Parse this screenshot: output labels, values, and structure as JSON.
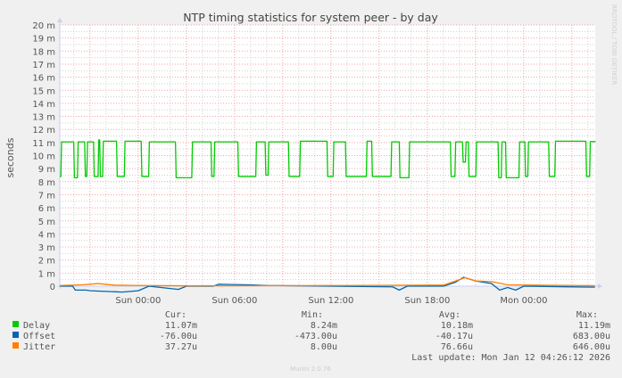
{
  "chart_data": {
    "type": "line",
    "title": "NTP timing statistics for system peer - by day",
    "ylabel": "seconds",
    "ylim": [
      0,
      20
    ],
    "yunit": "m",
    "yticks": [
      "0",
      "1 m",
      "2 m",
      "3 m",
      "4 m",
      "5 m",
      "6 m",
      "7 m",
      "8 m",
      "9 m",
      "10 m",
      "11 m",
      "12 m",
      "13 m",
      "14 m",
      "15 m",
      "16 m",
      "17 m",
      "18 m",
      "19 m",
      "20 m"
    ],
    "xlim": [
      "2026-01-10 19:07",
      "2026-01-12 04:27"
    ],
    "xticks": [
      {
        "t": "2026-01-11 00:00",
        "label": "Sun 00:00"
      },
      {
        "t": "2026-01-11 06:00",
        "label": "Sun 06:00"
      },
      {
        "t": "2026-01-11 12:00",
        "label": "Sun 12:00"
      },
      {
        "t": "2026-01-11 18:00",
        "label": "Sun 18:00"
      },
      {
        "t": "2026-01-12 00:00",
        "label": "Mon 00:00"
      }
    ],
    "grid": true,
    "legend_placement": "bottom",
    "series": [
      {
        "name": "Delay",
        "color": "#00cc00",
        "step": true,
        "points": [
          [
            "2026-01-10 19:07",
            8.4
          ],
          [
            "2026-01-10 19:11",
            11.05
          ],
          [
            "2026-01-10 19:59",
            8.3
          ],
          [
            "2026-01-10 20:13",
            11.05
          ],
          [
            "2026-01-10 20:40",
            8.4
          ],
          [
            "2026-01-10 20:48",
            11.05
          ],
          [
            "2026-01-10 21:13",
            8.4
          ],
          [
            "2026-01-10 21:30",
            11.2
          ],
          [
            "2026-01-10 21:36",
            8.4
          ],
          [
            "2026-01-10 21:47",
            11.1
          ],
          [
            "2026-01-10 22:39",
            8.4
          ],
          [
            "2026-01-10 23:08",
            11.1
          ],
          [
            "2026-01-11 00:11",
            8.4
          ],
          [
            "2026-01-11 00:39",
            11.05
          ],
          [
            "2026-01-11 02:19",
            8.3
          ],
          [
            "2026-01-11 03:20",
            11.05
          ],
          [
            "2026-01-11 04:32",
            8.4
          ],
          [
            "2026-01-11 04:43",
            11.05
          ],
          [
            "2026-01-11 06:12",
            8.4
          ],
          [
            "2026-01-11 07:19",
            11.05
          ],
          [
            "2026-01-11 07:54",
            8.5
          ],
          [
            "2026-01-11 08:05",
            11.05
          ],
          [
            "2026-01-11 09:21",
            8.4
          ],
          [
            "2026-01-11 10:03",
            11.1
          ],
          [
            "2026-01-11 11:45",
            8.4
          ],
          [
            "2026-01-11 12:08",
            11.05
          ],
          [
            "2026-01-11 12:54",
            8.4
          ],
          [
            "2026-01-11 14:12",
            11.1
          ],
          [
            "2026-01-11 14:32",
            8.4
          ],
          [
            "2026-01-11 15:44",
            11.05
          ],
          [
            "2026-01-11 16:15",
            8.3
          ],
          [
            "2026-01-11 16:51",
            11.05
          ],
          [
            "2026-01-11 19:26",
            8.4
          ],
          [
            "2026-01-11 19:43",
            11.05
          ],
          [
            "2026-01-11 20:11",
            9.5
          ],
          [
            "2026-01-11 20:22",
            11.05
          ],
          [
            "2026-01-11 20:33",
            8.4
          ],
          [
            "2026-01-11 21:01",
            11.05
          ],
          [
            "2026-01-11 22:24",
            8.3
          ],
          [
            "2026-01-11 22:36",
            11.05
          ],
          [
            "2026-01-11 22:52",
            8.3
          ],
          [
            "2026-01-11 23:42",
            11.05
          ],
          [
            "2026-01-12 00:04",
            8.4
          ],
          [
            "2026-01-12 00:15",
            11.05
          ],
          [
            "2026-01-12 01:33",
            8.4
          ],
          [
            "2026-01-12 01:56",
            11.1
          ],
          [
            "2026-01-12 03:52",
            8.4
          ],
          [
            "2026-01-12 04:06",
            11.07
          ],
          [
            "2026-01-12 04:26",
            11.07
          ]
        ]
      },
      {
        "name": "Offset",
        "color": "#0066b3",
        "step": false,
        "points": [
          [
            "2026-01-10 19:07",
            0
          ],
          [
            "2026-01-10 19:55",
            0
          ],
          [
            "2026-01-10 20:05",
            -0.3
          ],
          [
            "2026-01-10 20:45",
            -0.3
          ],
          [
            "2026-01-10 21:00",
            -0.35
          ],
          [
            "2026-01-10 23:00",
            -0.45
          ],
          [
            "2026-01-11 00:00",
            -0.35
          ],
          [
            "2026-01-11 00:40",
            0
          ],
          [
            "2026-01-11 02:30",
            -0.25
          ],
          [
            "2026-01-11 03:00",
            0
          ],
          [
            "2026-01-11 04:40",
            0
          ],
          [
            "2026-01-11 05:00",
            0.15
          ],
          [
            "2026-01-11 07:00",
            0.1
          ],
          [
            "2026-01-11 08:00",
            0.05
          ],
          [
            "2026-01-11 12:00",
            0
          ],
          [
            "2026-01-11 15:50",
            -0.05
          ],
          [
            "2026-01-11 16:15",
            -0.3
          ],
          [
            "2026-01-11 16:45",
            0
          ],
          [
            "2026-01-11 19:00",
            0
          ],
          [
            "2026-01-11 19:45",
            0.3
          ],
          [
            "2026-01-11 20:15",
            0.68
          ],
          [
            "2026-01-11 21:00",
            0.4
          ],
          [
            "2026-01-11 22:00",
            0.2
          ],
          [
            "2026-01-11 22:30",
            -0.3
          ],
          [
            "2026-01-11 23:00",
            -0.1
          ],
          [
            "2026-01-11 23:30",
            -0.3
          ],
          [
            "2026-01-12 00:00",
            0
          ],
          [
            "2026-01-12 04:26",
            -0.076
          ]
        ]
      },
      {
        "name": "Jitter",
        "color": "#ff8000",
        "step": false,
        "points": [
          [
            "2026-01-10 19:07",
            0.05
          ],
          [
            "2026-01-10 20:30",
            0.1
          ],
          [
            "2026-01-10 21:30",
            0.2
          ],
          [
            "2026-01-10 22:30",
            0.08
          ],
          [
            "2026-01-11 00:00",
            0.05
          ],
          [
            "2026-01-11 03:00",
            0.03
          ],
          [
            "2026-01-11 12:00",
            0.05
          ],
          [
            "2026-01-11 19:00",
            0.08
          ],
          [
            "2026-01-11 20:00",
            0.5
          ],
          [
            "2026-01-11 20:20",
            0.65
          ],
          [
            "2026-01-11 21:00",
            0.4
          ],
          [
            "2026-01-11 22:00",
            0.35
          ],
          [
            "2026-01-11 23:00",
            0.1
          ],
          [
            "2026-01-12 04:26",
            0.037
          ]
        ]
      }
    ]
  },
  "legend": {
    "headers": {
      "cur": "Cur:",
      "min": "Min:",
      "avg": "Avg:",
      "max": "Max:"
    },
    "rows": [
      {
        "name": "Delay",
        "color": "#00cc00",
        "cur": "11.07m",
        "min": "8.24m",
        "avg": "10.18m",
        "max": "11.19m"
      },
      {
        "name": "Offset",
        "color": "#0066b3",
        "cur": "-76.00u",
        "min": "-473.00u",
        "avg": "-40.17u",
        "max": "683.00u"
      },
      {
        "name": "Jitter",
        "color": "#ff8000",
        "cur": "37.27u",
        "min": "8.00u",
        "avg": "76.66u",
        "max": "646.00u"
      }
    ],
    "last_update": "Last update: Mon Jan 12 04:26:12 2026"
  },
  "watermark": "RRDTOOL / TOBI OETIKER",
  "footer": "Munin 2.0.76"
}
